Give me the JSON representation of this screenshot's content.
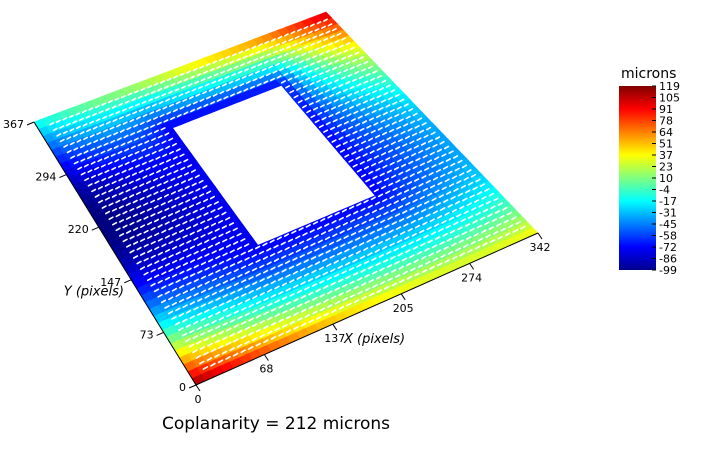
{
  "chart_data": {
    "type": "heatmap",
    "title": "",
    "caption": "Coplanarity = 212 microns",
    "xlabel": "X (pixels)",
    "ylabel": "Y (pixels)",
    "x_ticks": [
      "0",
      "68",
      "137",
      "205",
      "274",
      "342"
    ],
    "y_ticks": [
      "0",
      "73",
      "147",
      "220",
      "294",
      "367"
    ],
    "xlim": [
      0,
      342
    ],
    "ylim": [
      0,
      367
    ],
    "colorbar": {
      "title": "microns",
      "ticks": [
        "119",
        "105",
        "91",
        "78",
        "64",
        "51",
        "37",
        "23",
        "10",
        "-4",
        "-17",
        "-31",
        "-45",
        "-58",
        "-72",
        "-86",
        "-99"
      ],
      "range": [
        -99,
        119
      ],
      "colormap": "jet"
    },
    "surface": {
      "description_values": "warpage height in microns",
      "corner_values": {
        "x0_y0": 119,
        "x342_y0": 40,
        "x0_y367": -10,
        "x342_y367": 110
      },
      "edge_mid_values": {
        "left_edge_mid": -95,
        "right_edge_mid": -30,
        "bottom_edge_mid": 50,
        "top_edge_mid": 60
      },
      "inner_cutout": {
        "x": [
          120,
          245
        ],
        "y": [
          130,
          300
        ],
        "rim_value": -75
      }
    }
  }
}
